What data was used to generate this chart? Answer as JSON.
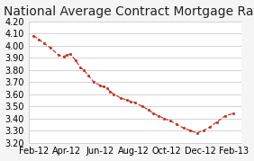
{
  "title": "National Average Contract Mortgage Rate",
  "x_labels": [
    "Feb-12",
    "Apr-12",
    "Jun-12",
    "Aug-12",
    "Oct-12",
    "Dec-12",
    "Feb-13"
  ],
  "x_values": [
    0,
    2,
    4,
    6,
    8,
    10,
    12
  ],
  "y_data": [
    4.08,
    4.05,
    4.02,
    3.98,
    3.92,
    3.91,
    3.92,
    3.93,
    3.88,
    3.82,
    3.8,
    3.75,
    3.7,
    3.67,
    3.66,
    3.65,
    3.62,
    3.6,
    3.57,
    3.55,
    3.54,
    3.53,
    3.5,
    3.47,
    3.44,
    3.42,
    3.4,
    3.38,
    3.35,
    3.32,
    3.3,
    3.28,
    3.3,
    3.33,
    3.37,
    3.42,
    3.44
  ],
  "x_numeric": [
    0.0,
    0.3,
    0.6,
    1.0,
    1.5,
    1.8,
    2.0,
    2.2,
    2.5,
    2.8,
    3.0,
    3.3,
    3.6,
    4.0,
    4.2,
    4.4,
    4.6,
    4.8,
    5.2,
    5.6,
    5.8,
    6.1,
    6.5,
    6.9,
    7.2,
    7.5,
    7.8,
    8.2,
    8.6,
    9.0,
    9.4,
    9.8,
    10.2,
    10.6,
    11.0,
    11.5,
    12.0
  ],
  "line_color": "#c0392b",
  "marker": ".",
  "linestyle": "--",
  "ylim": [
    3.2,
    4.2
  ],
  "yticks": [
    3.2,
    3.3,
    3.4,
    3.5,
    3.6,
    3.7,
    3.8,
    3.9,
    4.0,
    4.1,
    4.2
  ],
  "background_color": "#f5f5f5",
  "plot_bg_color": "#ffffff",
  "grid_color": "#cccccc",
  "title_fontsize": 10,
  "tick_fontsize": 7
}
